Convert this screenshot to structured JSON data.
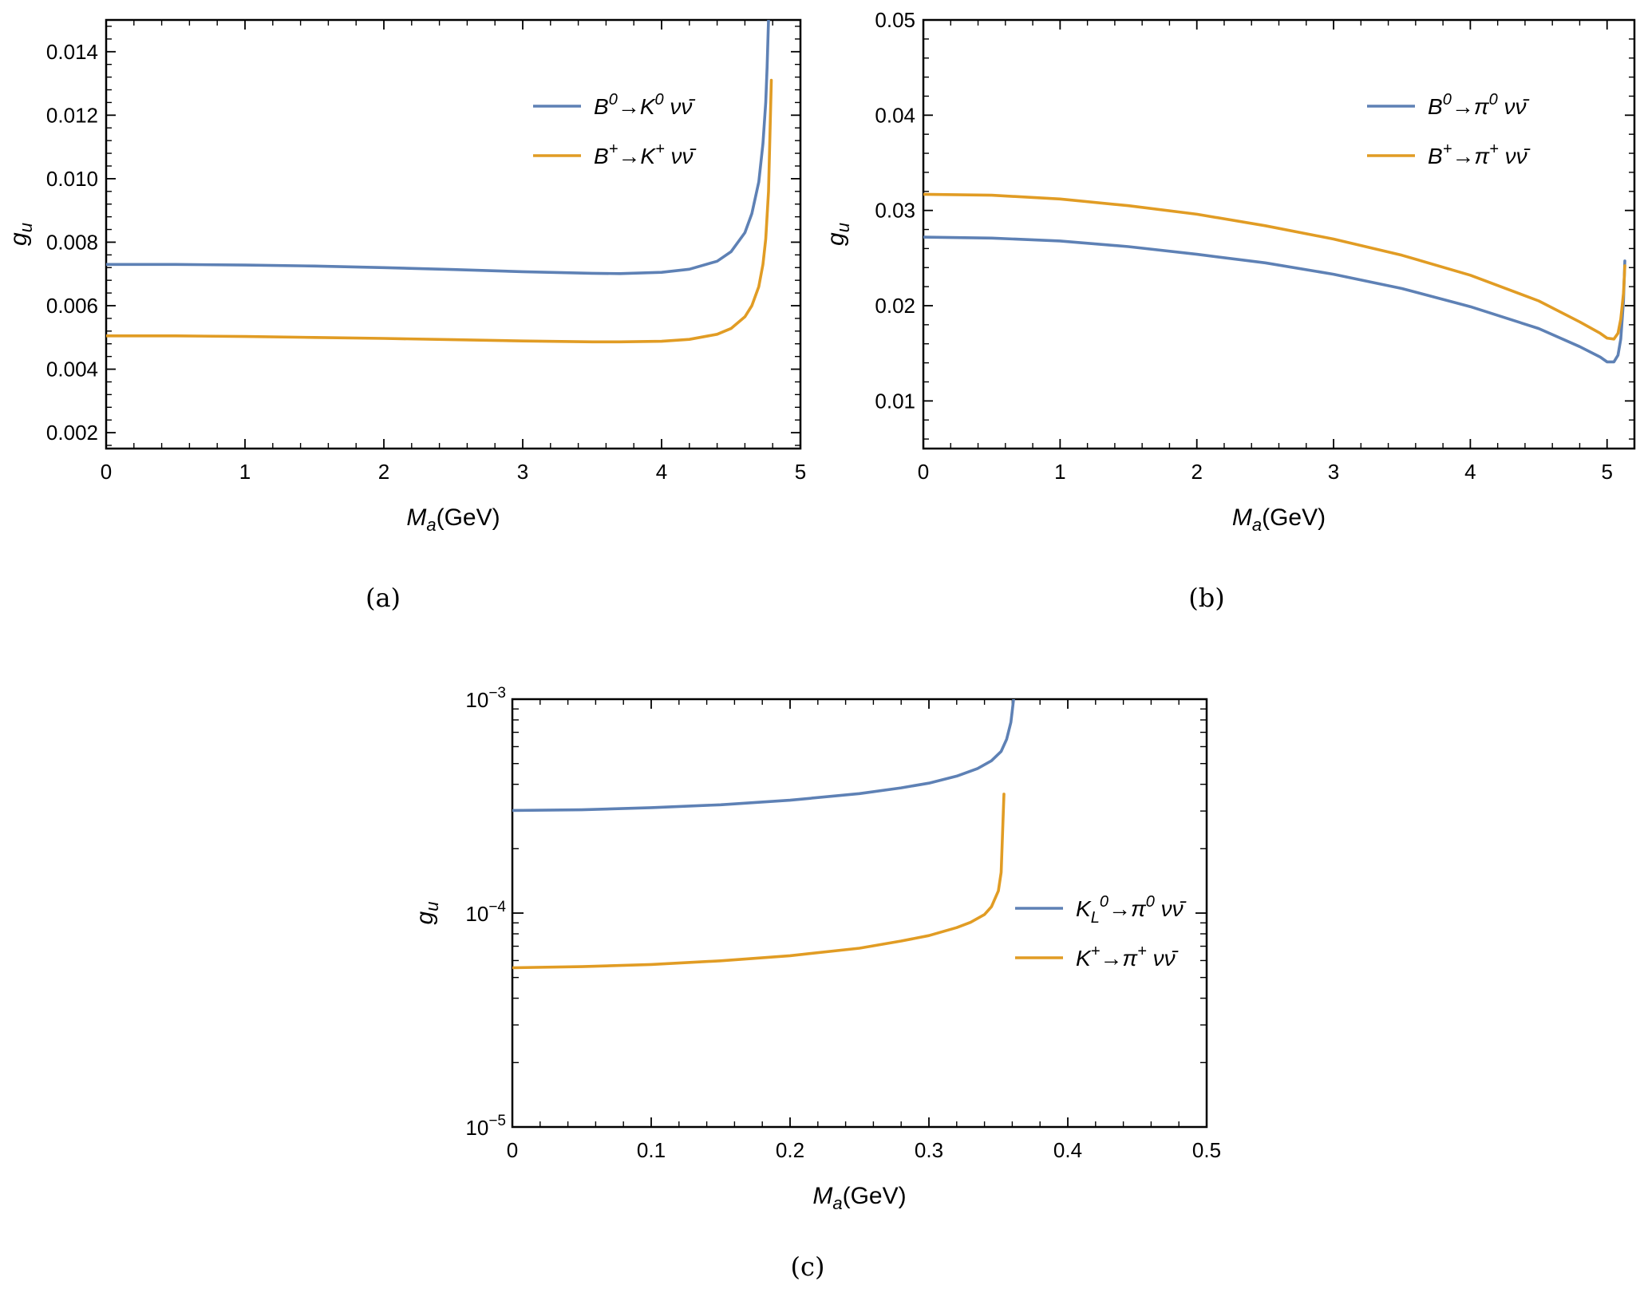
{
  "chart_data": [
    {
      "type": "line",
      "caption": "(a)",
      "xlabel": "M_a(GeV)",
      "ylabel": "g_u",
      "xlim": [
        0,
        5
      ],
      "ylim": [
        0.0015,
        0.015
      ],
      "x_ticks": [
        "0",
        "1",
        "2",
        "3",
        "4",
        "5"
      ],
      "y_ticks": [
        "0.002",
        "0.004",
        "0.006",
        "0.008",
        "0.010",
        "0.012",
        "0.014"
      ],
      "legend_position": "top-right",
      "series": [
        {
          "name": "B^0→K^0 νν̄",
          "color": "#5E81B5",
          "x": [
            0,
            0.5,
            1,
            1.5,
            2,
            2.5,
            3,
            3.5,
            3.7,
            4,
            4.2,
            4.4,
            4.5,
            4.6,
            4.65,
            4.7,
            4.73,
            4.75,
            4.76,
            4.77
          ],
          "y": [
            0.0073,
            0.0073,
            0.00728,
            0.00725,
            0.0072,
            0.00714,
            0.00707,
            0.00702,
            0.00701,
            0.00705,
            0.00715,
            0.0074,
            0.0077,
            0.0083,
            0.0089,
            0.0099,
            0.0111,
            0.0124,
            0.0135,
            0.015
          ]
        },
        {
          "name": "B^+→K^+ νν̄",
          "color": "#E19C24",
          "x": [
            0,
            0.5,
            1,
            1.5,
            2,
            2.5,
            3,
            3.5,
            3.7,
            4,
            4.2,
            4.4,
            4.5,
            4.6,
            4.65,
            4.7,
            4.73,
            4.75,
            4.77,
            4.79
          ],
          "y": [
            0.00505,
            0.00505,
            0.00503,
            0.005,
            0.00497,
            0.00493,
            0.00489,
            0.00486,
            0.00486,
            0.00488,
            0.00494,
            0.0051,
            0.00528,
            0.00565,
            0.006,
            0.0066,
            0.0073,
            0.0081,
            0.0096,
            0.0131
          ]
        }
      ]
    },
    {
      "type": "line",
      "caption": "(b)",
      "xlabel": "M_a(GeV)",
      "ylabel": "g_u",
      "xlim": [
        0,
        5.2
      ],
      "ylim": [
        0.005,
        0.05
      ],
      "x_ticks": [
        "0",
        "1",
        "2",
        "3",
        "4",
        "5"
      ],
      "y_ticks": [
        "0.01",
        "0.02",
        "0.03",
        "0.04",
        "0.05"
      ],
      "legend_position": "top-right",
      "series": [
        {
          "name": "B^0→π^0 νν̄",
          "color": "#5E81B5",
          "x": [
            0,
            0.5,
            1,
            1.5,
            2,
            2.5,
            3,
            3.5,
            4,
            4.5,
            4.8,
            4.95,
            5.0,
            5.05,
            5.08,
            5.1,
            5.12,
            5.13
          ],
          "y": [
            0.0272,
            0.0271,
            0.0268,
            0.0262,
            0.0254,
            0.0245,
            0.0233,
            0.0218,
            0.0199,
            0.0176,
            0.0157,
            0.0146,
            0.0141,
            0.0141,
            0.0148,
            0.0165,
            0.0205,
            0.0247
          ]
        },
        {
          "name": "B^+→π^+ νν̄",
          "color": "#E19C24",
          "x": [
            0,
            0.5,
            1,
            1.5,
            2,
            2.5,
            3,
            3.5,
            4,
            4.5,
            4.8,
            4.95,
            5.0,
            5.05,
            5.08,
            5.1,
            5.12,
            5.13
          ],
          "y": [
            0.0317,
            0.0316,
            0.0312,
            0.0305,
            0.0296,
            0.0284,
            0.027,
            0.0253,
            0.0232,
            0.0205,
            0.0183,
            0.0171,
            0.0166,
            0.0165,
            0.0171,
            0.0186,
            0.0213,
            0.0242
          ]
        }
      ]
    },
    {
      "type": "line",
      "caption": "(c)",
      "xlabel": "M_a(GeV)",
      "ylabel": "g_u",
      "xlim": [
        0,
        0.5
      ],
      "ylim": [
        1e-05,
        0.001
      ],
      "y_scale": "log",
      "x_ticks": [
        "0",
        "0.1",
        "0.2",
        "0.3",
        "0.4",
        "0.5"
      ],
      "y_ticks": [
        {
          "base": "10",
          "exp": "−3",
          "value": 0.001
        },
        {
          "base": "10",
          "exp": "−4",
          "value": 0.0001
        },
        {
          "base": "10",
          "exp": "−5",
          "value": 1e-05
        }
      ],
      "legend_position": "center-right",
      "series": [
        {
          "name": "K_L^0→π^0 νν̄",
          "color": "#5E81B5",
          "x": [
            0,
            0.05,
            0.1,
            0.15,
            0.2,
            0.25,
            0.28,
            0.3,
            0.32,
            0.335,
            0.345,
            0.352,
            0.356,
            0.359,
            0.361
          ],
          "y": [
            0.000302,
            0.000304,
            0.000311,
            0.000321,
            0.000337,
            0.000362,
            0.000385,
            0.000405,
            0.000437,
            0.000474,
            0.000515,
            0.00057,
            0.00065,
            0.00078,
            0.001
          ]
        },
        {
          "name": "K^+→π^+ νν̄",
          "color": "#E19C24",
          "x": [
            0,
            0.05,
            0.1,
            0.15,
            0.2,
            0.25,
            0.28,
            0.3,
            0.32,
            0.33,
            0.34,
            0.345,
            0.35,
            0.352,
            0.354
          ],
          "y": [
            5.55e-05,
            5.62e-05,
            5.75e-05,
            5.98e-05,
            6.32e-05,
            6.85e-05,
            7.4e-05,
            7.85e-05,
            8.55e-05,
            9.05e-05,
            9.85e-05,
            0.000107,
            0.000127,
            0.000155,
            0.00036
          ]
        }
      ]
    }
  ]
}
